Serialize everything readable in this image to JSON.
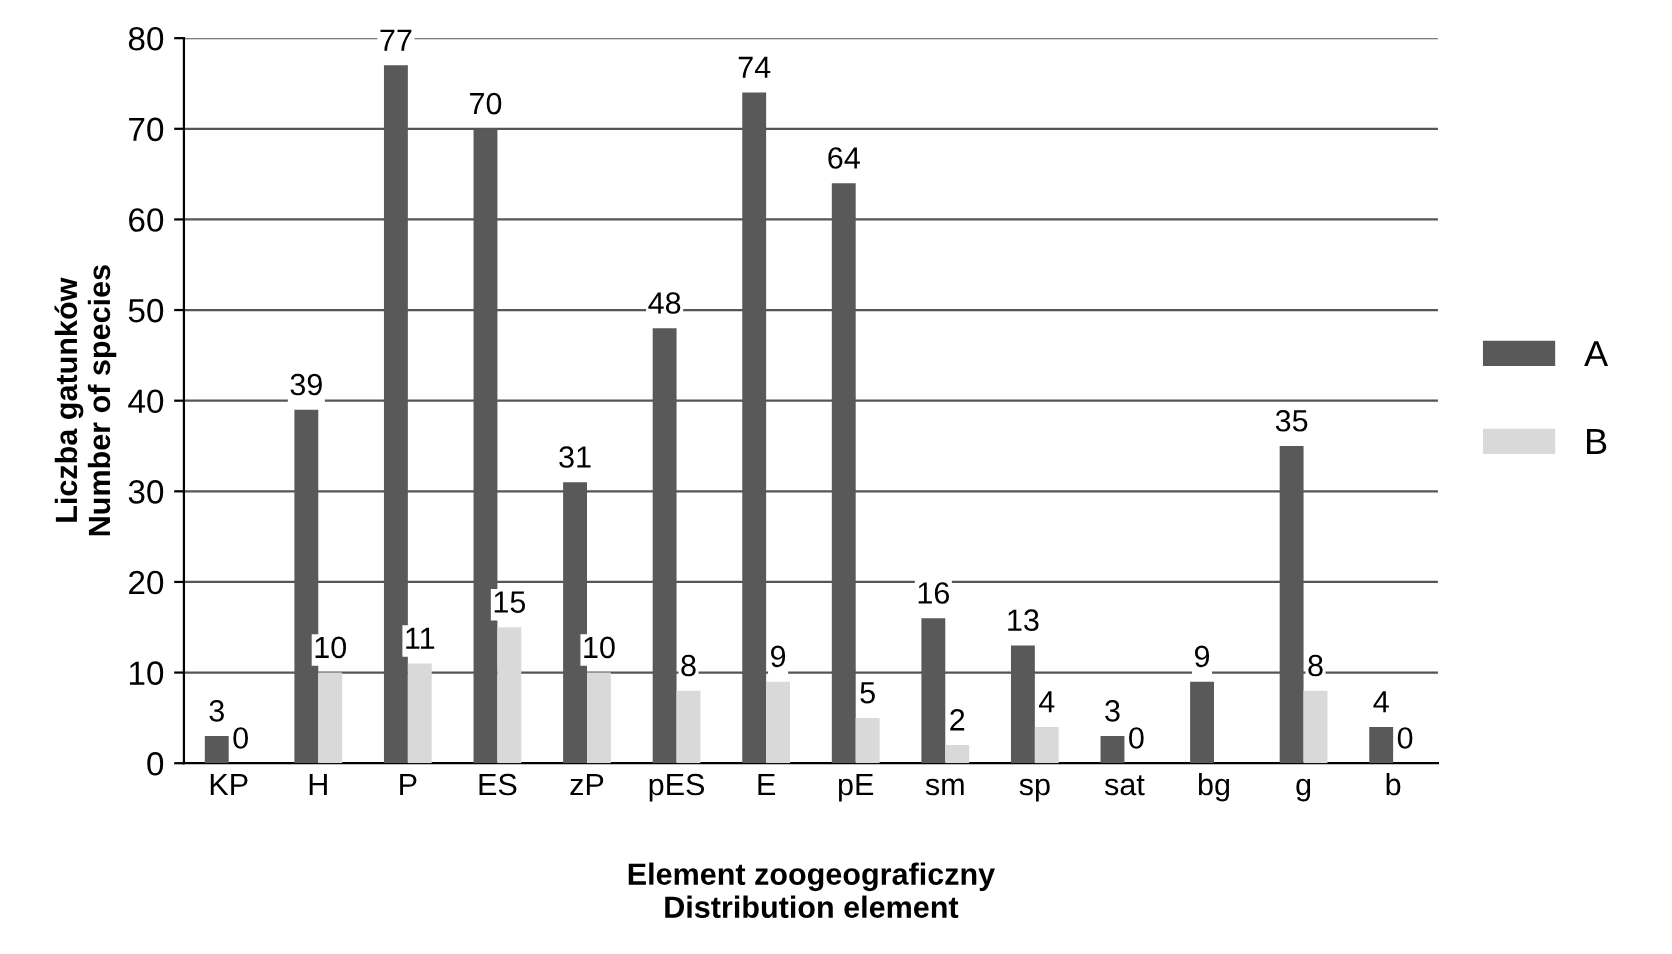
{
  "chart_data": {
    "type": "bar",
    "xlabel": "Element zoogeograficzny\nDistribution element",
    "ylabel": "Liczba gatunków\nNumber of species",
    "categories": [
      "KP",
      "H",
      "P",
      "ES",
      "zP",
      "pES",
      "E",
      "pE",
      "sm",
      "sp",
      "sat",
      "bg",
      "g",
      "b"
    ],
    "series": [
      {
        "name": "A",
        "color": "#595959",
        "values": [
          3,
          39,
          77,
          70,
          31,
          48,
          74,
          64,
          16,
          13,
          3,
          9,
          35,
          4
        ],
        "value_labels": [
          "3",
          "39",
          "77",
          "70",
          "31",
          "48",
          "74",
          "64",
          "16",
          "13",
          "3",
          "9",
          "35",
          "4"
        ]
      },
      {
        "name": "B",
        "color": "#d9d9d9",
        "values": [
          0,
          10,
          11,
          15,
          10,
          8,
          9,
          5,
          2,
          4,
          0,
          0,
          8,
          0
        ],
        "value_labels": [
          "0",
          "10",
          "11",
          "15",
          "10",
          "8",
          "9",
          "5",
          "2",
          "4",
          "0",
          null,
          "8",
          "0"
        ]
      }
    ],
    "ylim": [
      0,
      80
    ],
    "yticks": [
      0,
      10,
      20,
      30,
      40,
      50,
      60,
      70,
      80
    ],
    "grid": "y",
    "legend": "right"
  }
}
